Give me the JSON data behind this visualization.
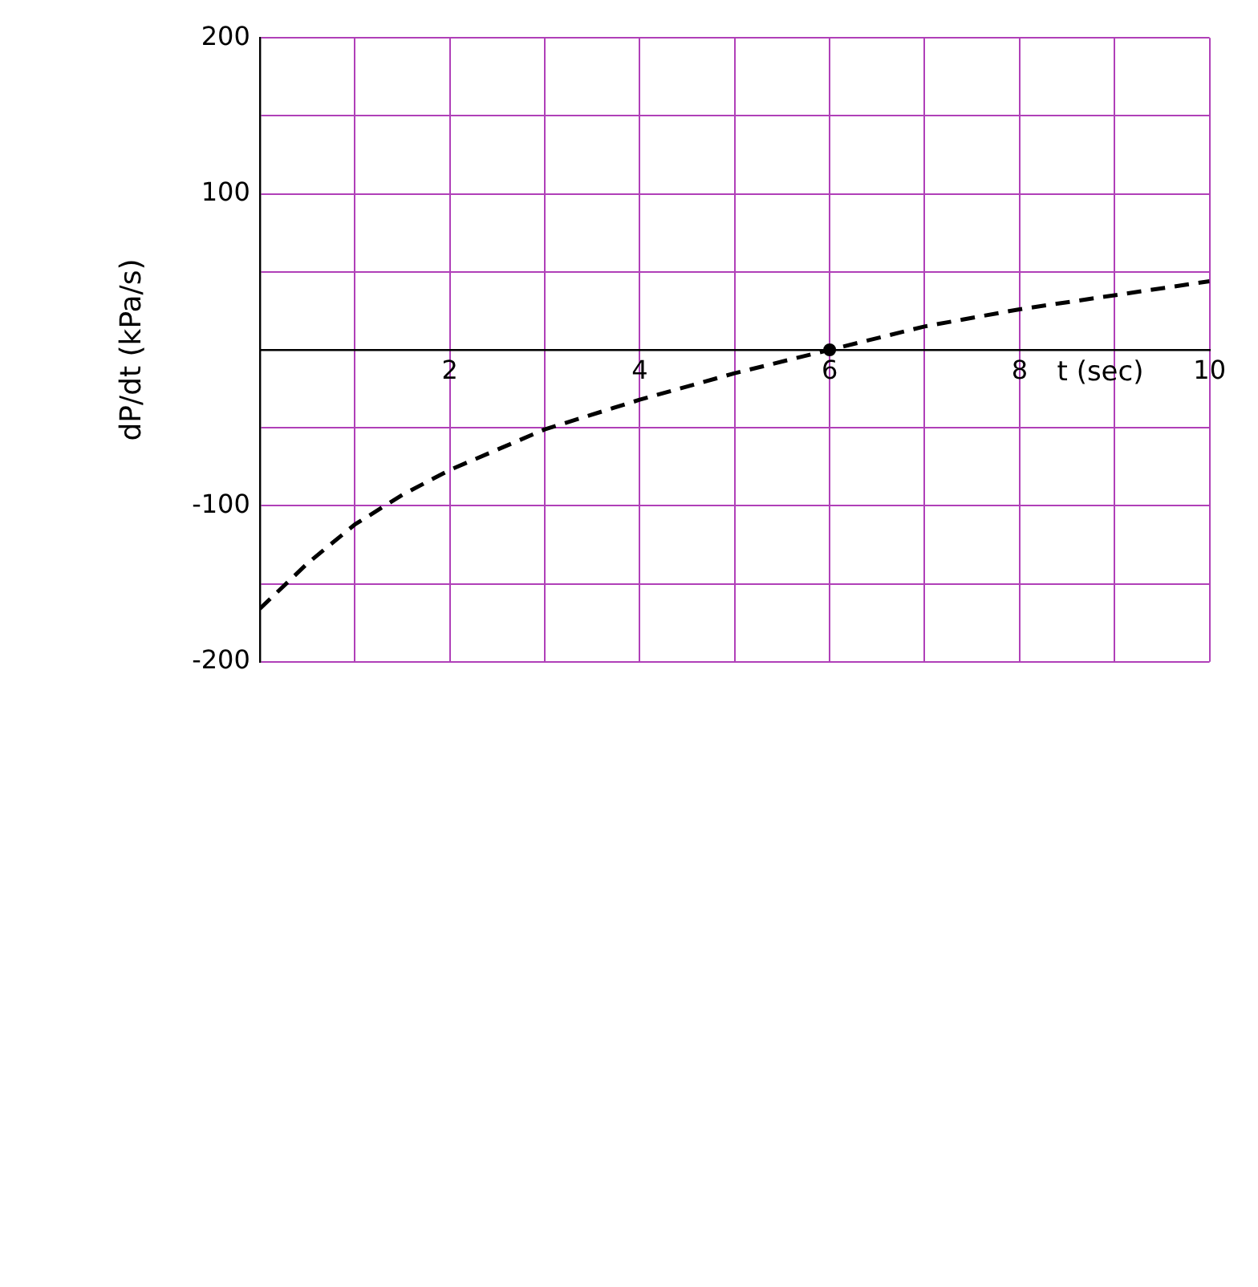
{
  "chart_data": {
    "type": "line",
    "xlabel": "t (sec)",
    "ylabel": "dP/dt (kPa/s)",
    "xlim": [
      0,
      10
    ],
    "xticks": [
      {
        "value": 1,
        "label": null
      },
      2,
      {
        "value": 3,
        "label": null
      },
      4,
      {
        "value": 5,
        "label": null
      },
      6,
      {
        "value": 7,
        "label": null
      },
      8,
      {
        "value": 9,
        "label": null
      },
      10
    ],
    "ylim": [
      -200,
      200
    ],
    "yticks": [
      -200,
      {
        "value": -150,
        "label": null
      },
      -100,
      {
        "value": -50,
        "label": null
      },
      {
        "value": 0,
        "label": null
      },
      {
        "value": 50,
        "label": null
      },
      100,
      {
        "value": 150,
        "label": null
      },
      200
    ],
    "grid": true,
    "series": [
      {
        "color": "#000000",
        "line_style": "dashed",
        "marker": "none",
        "x": [
          0,
          0.5,
          1,
          1.5,
          2,
          3,
          4,
          5,
          6,
          7,
          8,
          9,
          10
        ],
        "values": [
          -166,
          -137,
          -112,
          -93,
          -77,
          -51,
          -32,
          -15,
          0,
          15,
          26,
          35,
          44
        ]
      },
      {
        "type": "scatter",
        "color": "#000000",
        "marker": "circle",
        "x": [
          6
        ],
        "values": [
          0
        ]
      }
    ]
  }
}
